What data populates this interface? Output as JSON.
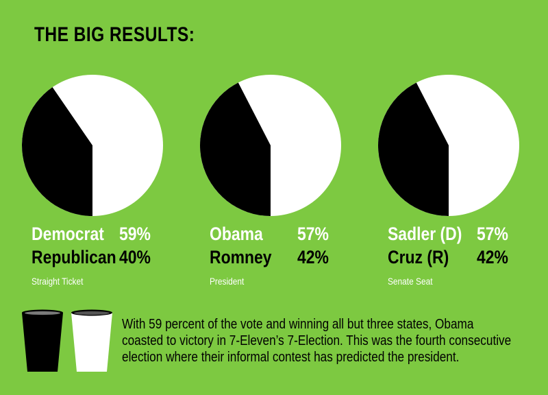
{
  "title": "THE BIG RESULTS:",
  "chart_data": [
    {
      "type": "pie",
      "caption": "Straight Ticket",
      "series": [
        {
          "name": "Democrat",
          "value": 59,
          "value_label": "59%",
          "color": "#ffffff"
        },
        {
          "name": "Republican",
          "value": 40,
          "value_label": "40%",
          "color": "#000000"
        }
      ]
    },
    {
      "type": "pie",
      "caption": "President",
      "series": [
        {
          "name": "Obama",
          "value": 57,
          "value_label": "57%",
          "color": "#ffffff"
        },
        {
          "name": "Romney",
          "value": 42,
          "value_label": "42%",
          "color": "#000000"
        }
      ]
    },
    {
      "type": "pie",
      "caption": "Senate Seat",
      "series": [
        {
          "name": "Sadler (D)",
          "value": 57,
          "value_label": "57%",
          "color": "#ffffff"
        },
        {
          "name": "Cruz (R)",
          "value": 42,
          "value_label": "42%",
          "color": "#000000"
        }
      ]
    }
  ],
  "description_lines": [
    "With 59 percent of the vote and winning all but three states, Obama",
    "coasted to victory in 7-Eleven’s 7-Election. This was the fourth consecutive",
    "election where their informal contest has predicted the president."
  ],
  "colors": {
    "background": "#7dc941",
    "cup_left": "#000000",
    "cup_right": "#ffffff"
  }
}
